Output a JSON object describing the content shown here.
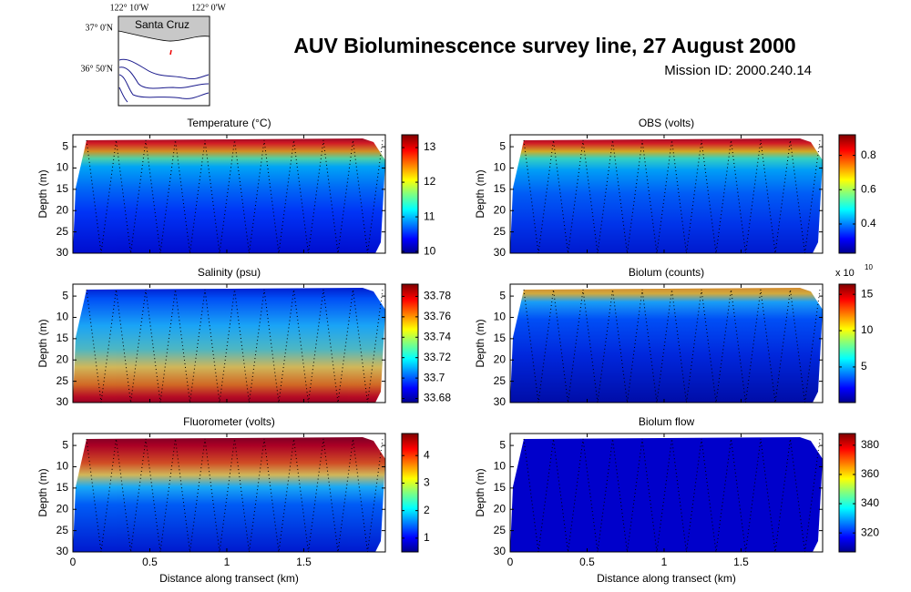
{
  "title": "AUV Bioluminescence survey line, 27 August 2000",
  "subtitle": "Mission ID: 2000.240.14",
  "map": {
    "place": "Santa Cruz",
    "lon_labels": [
      "122° 10'W",
      "122° 0'W"
    ],
    "lat_labels": [
      "37° 0'N",
      "36° 50'N"
    ]
  },
  "chart_data": [
    {
      "type": "heatmap",
      "title": "Temperature (°C)",
      "y_label": "Depth (m)",
      "xlim": [
        0,
        2.03
      ],
      "xticks": [
        0,
        0.5,
        1,
        1.5
      ],
      "ylim": [
        2.2,
        30
      ],
      "yticks": [
        5,
        10,
        15,
        20,
        25,
        30
      ],
      "clim": [
        9.95,
        13.37
      ],
      "cticks": [
        10,
        11,
        12,
        13
      ]
    },
    {
      "type": "heatmap",
      "title": "OBS (volts)",
      "y_label": "Depth (m)",
      "xlim": [
        0,
        2.03
      ],
      "xticks": [
        0,
        0.5,
        1,
        1.5
      ],
      "ylim": [
        2.2,
        30
      ],
      "yticks": [
        5,
        10,
        15,
        20,
        25,
        30
      ],
      "clim": [
        0.23,
        0.92
      ],
      "cticks": [
        0.4,
        0.6,
        0.8
      ]
    },
    {
      "type": "heatmap",
      "title": "Salinity (psu)",
      "y_label": "Depth (m)",
      "xlim": [
        0,
        2.03
      ],
      "xticks": [
        0,
        0.5,
        1,
        1.5
      ],
      "ylim": [
        2.2,
        30
      ],
      "yticks": [
        5,
        10,
        15,
        20,
        25,
        30
      ],
      "clim": [
        33.676,
        33.792
      ],
      "cticks": [
        33.68,
        33.7,
        33.72,
        33.74,
        33.76,
        33.78
      ]
    },
    {
      "type": "heatmap",
      "title": "Biolum (counts)",
      "y_label": "Depth (m)",
      "xlim": [
        0,
        2.03
      ],
      "xticks": [
        0,
        0.5,
        1,
        1.5
      ],
      "ylim": [
        2.2,
        30
      ],
      "yticks": [
        5,
        10,
        15,
        20,
        25,
        30
      ],
      "clim": [
        0.1,
        16.4
      ],
      "cticks": [
        5,
        10,
        15
      ],
      "cbar_multiplier": "x 10",
      "cbar_exponent": "10"
    },
    {
      "type": "heatmap",
      "title": "Fluorometer (volts)",
      "y_label": "Depth (m)",
      "x_label": "Distance along transect (km)",
      "xlim": [
        0,
        2.03
      ],
      "xticks": [
        0,
        0.5,
        1,
        1.5
      ],
      "ylim": [
        2.2,
        30
      ],
      "yticks": [
        5,
        10,
        15,
        20,
        25,
        30
      ],
      "clim": [
        0.5,
        4.8
      ],
      "cticks": [
        1,
        2,
        3,
        4
      ]
    },
    {
      "type": "heatmap",
      "title": "Biolum flow",
      "y_label": "Depth (m)",
      "x_label": "Distance along transect (km)",
      "xlim": [
        0,
        2.03
      ],
      "xticks": [
        0,
        0.5,
        1,
        1.5
      ],
      "ylim": [
        2.2,
        30
      ],
      "yticks": [
        5,
        10,
        15,
        20,
        25,
        30
      ],
      "clim": [
        307,
        388
      ],
      "cticks": [
        320,
        340,
        360,
        380
      ]
    }
  ]
}
